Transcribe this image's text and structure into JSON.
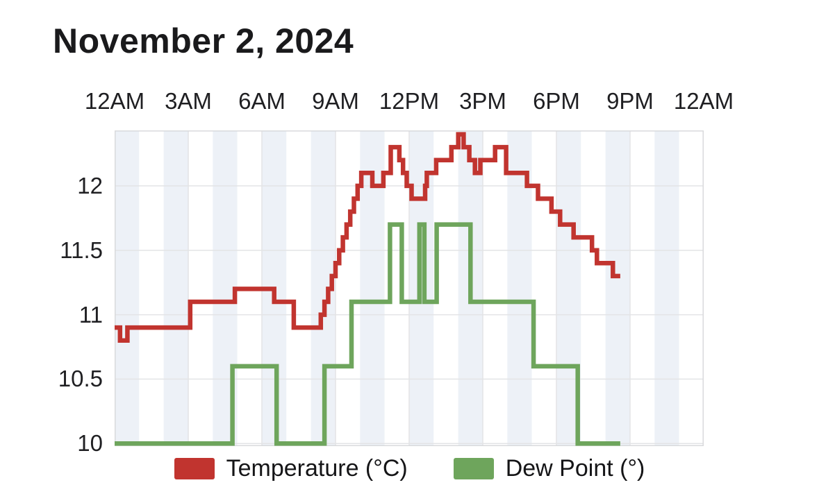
{
  "page": {
    "title": "November 2, 2024",
    "background": "#ffffff"
  },
  "chart_data": {
    "type": "line",
    "title": "November 2, 2024",
    "xlabel": "",
    "ylabel": "",
    "x_unit": "hours from midnight",
    "xlim": [
      0,
      24
    ],
    "ylim": [
      9.98,
      12.43
    ],
    "x_ticks": [
      {
        "hour": 0,
        "label": "12AM"
      },
      {
        "hour": 3,
        "label": "3AM"
      },
      {
        "hour": 6,
        "label": "6AM"
      },
      {
        "hour": 9,
        "label": "9AM"
      },
      {
        "hour": 12,
        "label": "12PM"
      },
      {
        "hour": 15,
        "label": "3PM"
      },
      {
        "hour": 18,
        "label": "6PM"
      },
      {
        "hour": 21,
        "label": "9PM"
      },
      {
        "hour": 24,
        "label": "12AM"
      }
    ],
    "y_ticks": [
      10,
      10.5,
      11,
      11.5,
      12
    ],
    "y_tick_labels": [
      "10",
      "10.5",
      "11",
      "11.5",
      "12"
    ],
    "grid": true,
    "grid_color": "#e3e4e6",
    "border_color": "#d9dadc",
    "stripes": {
      "period_hours": 1,
      "even_color": "#edf1f7",
      "odd_color": "#ffffff"
    },
    "legend_position": "bottom",
    "interpolation": "step-after",
    "line_width": 6.5,
    "series": [
      {
        "name": "Temperature (°C)",
        "color": "#c1342f",
        "points": [
          [
            0,
            10.9
          ],
          [
            0.22,
            10.8
          ],
          [
            0.52,
            10.9
          ],
          [
            3.08,
            11.1
          ],
          [
            4.9,
            11.2
          ],
          [
            6.5,
            11.1
          ],
          [
            7.3,
            10.9
          ],
          [
            8.4,
            11.0
          ],
          [
            8.55,
            11.1
          ],
          [
            8.7,
            11.2
          ],
          [
            8.85,
            11.3
          ],
          [
            9.0,
            11.4
          ],
          [
            9.15,
            11.5
          ],
          [
            9.3,
            11.6
          ],
          [
            9.45,
            11.7
          ],
          [
            9.6,
            11.8
          ],
          [
            9.75,
            11.9
          ],
          [
            9.9,
            12.0
          ],
          [
            10.05,
            12.1
          ],
          [
            10.5,
            12.0
          ],
          [
            10.95,
            12.1
          ],
          [
            11.25,
            12.3
          ],
          [
            11.6,
            12.2
          ],
          [
            11.75,
            12.1
          ],
          [
            11.9,
            12.0
          ],
          [
            12.1,
            11.9
          ],
          [
            12.65,
            12.0
          ],
          [
            12.72,
            12.1
          ],
          [
            13.1,
            12.2
          ],
          [
            13.72,
            12.3
          ],
          [
            14.0,
            12.4
          ],
          [
            14.22,
            12.3
          ],
          [
            14.45,
            12.2
          ],
          [
            14.68,
            12.1
          ],
          [
            14.9,
            12.2
          ],
          [
            15.5,
            12.3
          ],
          [
            15.95,
            12.1
          ],
          [
            16.8,
            12.0
          ],
          [
            17.25,
            11.9
          ],
          [
            17.8,
            11.8
          ],
          [
            18.15,
            11.7
          ],
          [
            18.7,
            11.6
          ],
          [
            19.45,
            11.5
          ],
          [
            19.65,
            11.4
          ],
          [
            20.3,
            11.3
          ],
          [
            20.6,
            11.3
          ]
        ]
      },
      {
        "name": "Dew Point (°)",
        "color": "#6ea55c",
        "points": [
          [
            0,
            10.0
          ],
          [
            4.8,
            10.6
          ],
          [
            6.6,
            10.0
          ],
          [
            8.55,
            10.6
          ],
          [
            9.65,
            11.1
          ],
          [
            11.22,
            11.7
          ],
          [
            11.7,
            11.1
          ],
          [
            12.42,
            11.7
          ],
          [
            12.62,
            11.1
          ],
          [
            13.12,
            11.7
          ],
          [
            14.5,
            11.1
          ],
          [
            17.07,
            10.6
          ],
          [
            18.87,
            10.0
          ],
          [
            20.6,
            10.0
          ]
        ]
      }
    ]
  }
}
